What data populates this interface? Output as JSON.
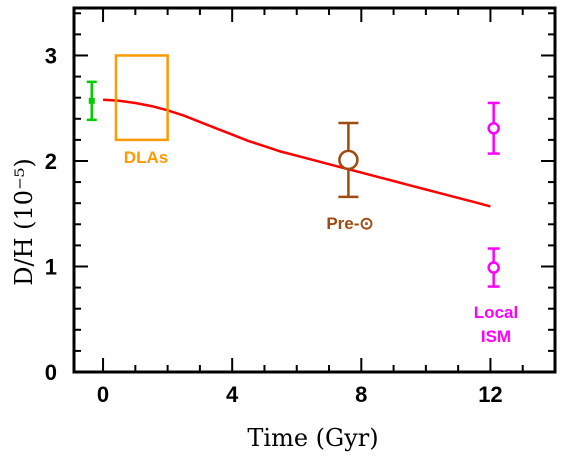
{
  "chart_data": {
    "type": "scatter",
    "xlabel": "Time (Gyr)",
    "ylabel": "D/H (10⁻⁵)",
    "xlim": [
      -0.9,
      14
    ],
    "ylim": [
      0,
      3.45
    ],
    "x_ticks": [
      0,
      4,
      8,
      12
    ],
    "y_ticks": [
      0,
      1,
      2,
      3
    ],
    "grid": false,
    "colors": {
      "primordial": "#00cc00",
      "dlas": "#ff9900",
      "presolar": "#a04a10",
      "ism": "#ff00ff",
      "model": "#ff0000"
    },
    "curve": {
      "x": [
        0,
        0.5,
        1,
        1.5,
        2,
        2.5,
        3,
        3.5,
        4,
        4.5,
        5,
        5.5,
        6,
        6.5,
        7,
        7.5,
        8,
        8.5,
        9,
        9.5,
        10,
        10.5,
        11,
        11.5,
        12
      ],
      "y": [
        2.58,
        2.57,
        2.55,
        2.52,
        2.48,
        2.43,
        2.37,
        2.31,
        2.25,
        2.19,
        2.14,
        2.09,
        2.05,
        2.01,
        1.97,
        1.93,
        1.89,
        1.85,
        1.81,
        1.77,
        1.73,
        1.69,
        1.65,
        1.61,
        1.57
      ]
    },
    "primordial_point": {
      "x": -0.35,
      "y": 2.57,
      "ylow": 2.39,
      "yhigh": 2.75
    },
    "dlas_box": {
      "x0": 0.4,
      "x1": 2.0,
      "y0": 2.2,
      "y1": 3.0,
      "label": "DLAs"
    },
    "presolar_point": {
      "x": 7.6,
      "y": 2.01,
      "ylow": 1.66,
      "yhigh": 2.36,
      "label": "Pre-⊙"
    },
    "ism_points": [
      {
        "x": 12.1,
        "y": 2.31,
        "ylow": 2.07,
        "yhigh": 2.55
      },
      {
        "x": 12.1,
        "y": 0.99,
        "ylow": 0.81,
        "yhigh": 1.17
      }
    ],
    "ism_label": [
      "Local",
      "ISM"
    ]
  }
}
